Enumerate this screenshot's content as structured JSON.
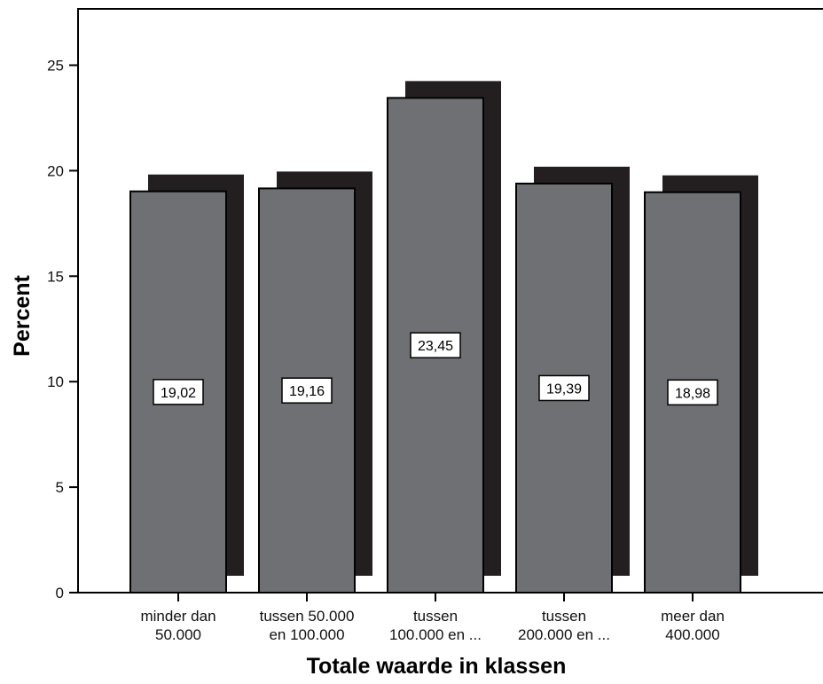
{
  "chart_data": {
    "type": "bar",
    "title": "",
    "xlabel": "Totale waarde in klassen",
    "ylabel": "Percent",
    "categories": [
      [
        "minder dan",
        "50.000"
      ],
      [
        "tussen 50.000",
        "en 100.000"
      ],
      [
        "tussen",
        "100.000 en ..."
      ],
      [
        "tussen",
        "200.000 en ..."
      ],
      [
        "meer dan",
        "400.000"
      ]
    ],
    "values": [
      19.02,
      19.16,
      23.45,
      19.39,
      18.98
    ],
    "value_labels": [
      "19,02",
      "19,16",
      "23,45",
      "19,39",
      "18,98"
    ],
    "ylim": [
      0,
      27.0
    ],
    "yticks": [
      0,
      5,
      10,
      15,
      20,
      25
    ],
    "grid": false,
    "legend": "none",
    "bar_color": "#6f7073",
    "shadow_color": "#231f20"
  }
}
